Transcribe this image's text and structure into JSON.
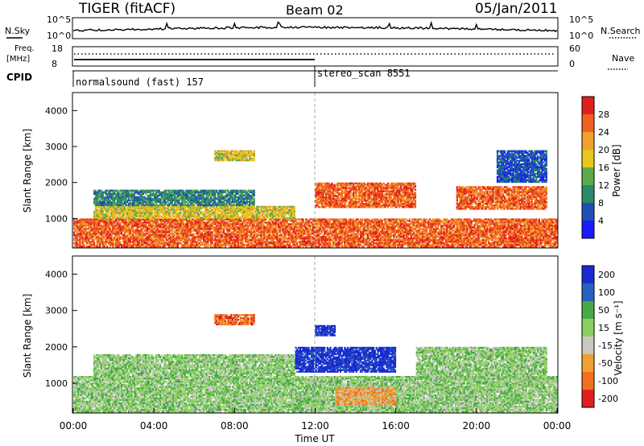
{
  "header": {
    "radar": "TIGER (fitACF)",
    "beam": "Beam 02",
    "date": "05/Jan/2011"
  },
  "left_labels": {
    "nsky": "N.Sky",
    "nsky_ticks": [
      "10^5",
      "10^0"
    ],
    "freq_line1": "Freq.",
    "freq_line2": "[MHz]",
    "freq_ticks": [
      "18",
      "8"
    ],
    "cpid": "CPID"
  },
  "right_labels": {
    "nsearch": "N.Search",
    "nsearch_ticks": [
      "10^5",
      "10^0"
    ],
    "nave": "Nave",
    "nave_ticks": [
      "60",
      "0"
    ]
  },
  "cpid_segments": [
    {
      "label": "normalsound (fast) 157",
      "start_hour": 0
    },
    {
      "label": "stereo_scan 8551",
      "start_hour": 12
    }
  ],
  "x_axis": {
    "label": "Time UT",
    "ticks": [
      "00:00",
      "04:00",
      "08:00",
      "12:00",
      "16:00",
      "20:00",
      "00:00"
    ]
  },
  "y_axis": {
    "label": "Slant Range [km]",
    "ticks": [
      "1000",
      "2000",
      "3000",
      "4000"
    ]
  },
  "power_colorbar": {
    "label": "Power [dB]",
    "ticks": [
      "4",
      "8",
      "12",
      "16",
      "20",
      "24",
      "28"
    ],
    "colors": [
      "#1a1aff",
      "#1f4fb4",
      "#2a8a6a",
      "#5ea94e",
      "#e8c81e",
      "#f0a030",
      "#f06020",
      "#e02020"
    ]
  },
  "velocity_colorbar": {
    "label": "Velocity [m s⁻¹]",
    "ticks": [
      "200",
      "100",
      "50",
      "15",
      "-15",
      "-50",
      "-100",
      "-200"
    ],
    "colors": [
      "#1a2ad0",
      "#2a60c0",
      "#48a848",
      "#8ad060",
      "#c8c8c0",
      "#f0a030",
      "#f07020",
      "#e02020"
    ]
  },
  "chart_data": [
    {
      "type": "heatmap",
      "name": "Power",
      "x_range_hours": [
        0,
        24
      ],
      "y_range_km": [
        180,
        4500
      ],
      "bands": [
        {
          "t0": 0,
          "t1": 24,
          "r0": 200,
          "r1": 1000,
          "value_db": 25
        },
        {
          "t0": 1,
          "t1": 11,
          "r0": 1000,
          "r1": 1350,
          "value_db": 16
        },
        {
          "t0": 1,
          "t1": 9,
          "r0": 1350,
          "r1": 1800,
          "value_db": 9
        },
        {
          "t0": 12,
          "t1": 17,
          "r0": 1300,
          "r1": 2000,
          "value_db": 24
        },
        {
          "t0": 19,
          "t1": 23.5,
          "r0": 1250,
          "r1": 1900,
          "value_db": 24
        },
        {
          "t0": 7,
          "t1": 9,
          "r0": 2600,
          "r1": 2900,
          "value_db": 16
        },
        {
          "t0": 21,
          "t1": 23.5,
          "r0": 2000,
          "r1": 2900,
          "value_db": 6
        }
      ]
    },
    {
      "type": "heatmap",
      "name": "Velocity",
      "x_range_hours": [
        0,
        24
      ],
      "y_range_km": [
        180,
        4500
      ],
      "bands": [
        {
          "t0": 0,
          "t1": 24,
          "r0": 200,
          "r1": 1200,
          "value_ms": 0
        },
        {
          "t0": 1,
          "t1": 11,
          "r0": 1200,
          "r1": 1800,
          "value_ms": 0
        },
        {
          "t0": 11,
          "t1": 16,
          "r0": 1300,
          "r1": 2000,
          "value_ms": 150
        },
        {
          "t0": 12,
          "t1": 13,
          "r0": 2300,
          "r1": 2600,
          "value_ms": 200
        },
        {
          "t0": 17,
          "t1": 23.5,
          "r0": 1100,
          "r1": 2000,
          "value_ms": 0
        },
        {
          "t0": 7,
          "t1": 9,
          "r0": 2600,
          "r1": 2900,
          "value_ms": -100
        },
        {
          "t0": 13,
          "t1": 16,
          "r0": 400,
          "r1": 900,
          "value_ms": -50
        }
      ]
    }
  ]
}
